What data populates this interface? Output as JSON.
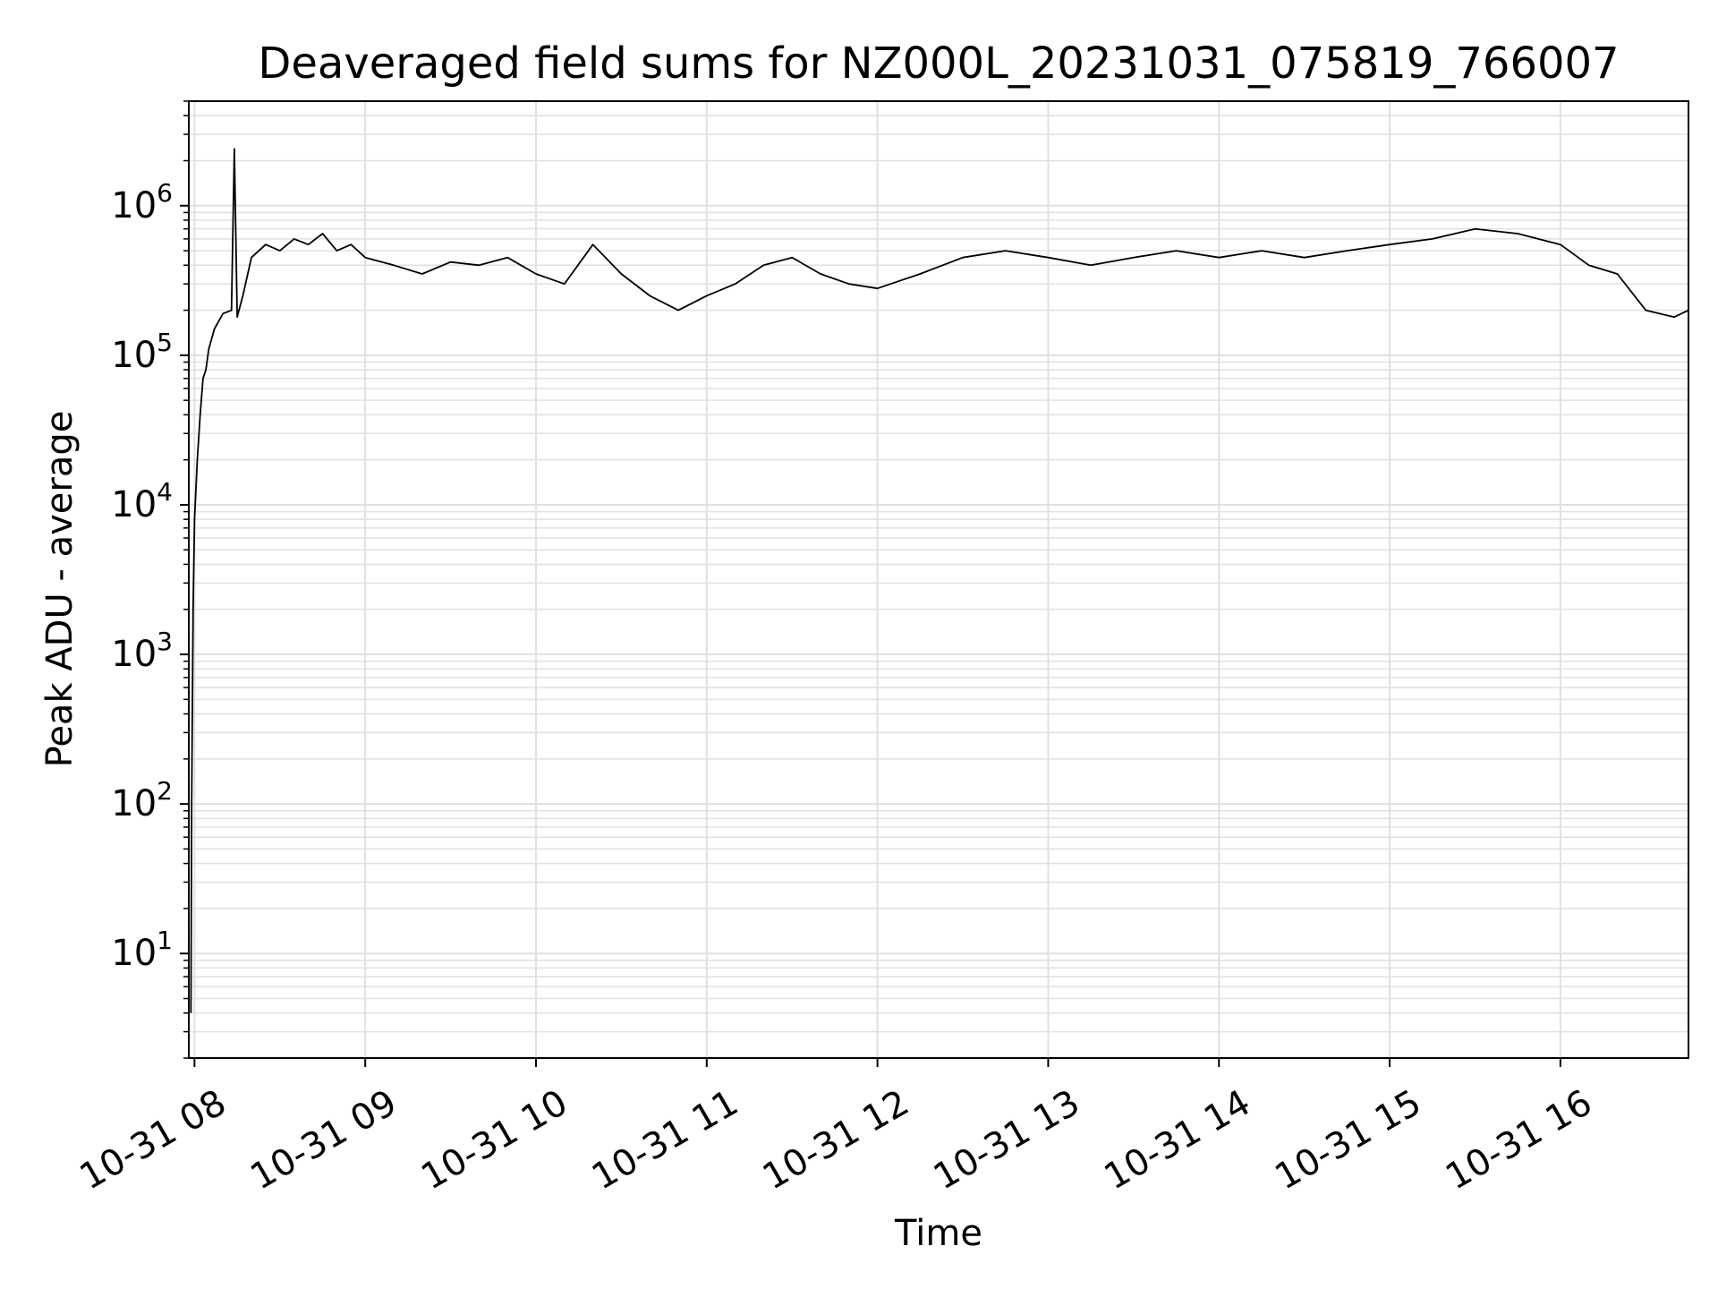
{
  "chart_data": {
    "type": "line",
    "title": "Deaveraged field sums for NZ000L_20231031_075819_766007",
    "xlabel": "Time",
    "ylabel": "Peak ADU - average",
    "yscale": "log",
    "ylim": [
      2,
      5000000
    ],
    "xlim": [
      "2023-10-31T07:58:00",
      "2023-10-31T16:45:00"
    ],
    "grid": true,
    "legend": "none",
    "line_color": "#000000",
    "grid_color": "#e0e0e0",
    "x_tick_labels": [
      "10-31 08",
      "10-31 09",
      "10-31 10",
      "10-31 11",
      "10-31 12",
      "10-31 13",
      "10-31 14",
      "10-31 15",
      "10-31 16"
    ],
    "x_ticks": [
      "2023-10-31T08:00:00",
      "2023-10-31T09:00:00",
      "2023-10-31T10:00:00",
      "2023-10-31T11:00:00",
      "2023-10-31T12:00:00",
      "2023-10-31T13:00:00",
      "2023-10-31T14:00:00",
      "2023-10-31T15:00:00",
      "2023-10-31T16:00:00"
    ],
    "y_tick_values": [
      10,
      100,
      1000,
      10000,
      100000,
      1000000
    ],
    "y_tick_labels": [
      {
        "base": "10",
        "exp": "1"
      },
      {
        "base": "10",
        "exp": "2"
      },
      {
        "base": "10",
        "exp": "3"
      },
      {
        "base": "10",
        "exp": "4"
      },
      {
        "base": "10",
        "exp": "5"
      },
      {
        "base": "10",
        "exp": "6"
      }
    ],
    "series": [
      {
        "x": [
          "2023-10-31T07:58:45",
          "2023-10-31T07:59:00",
          "2023-10-31T07:59:30",
          "2023-10-31T08:00:00",
          "2023-10-31T08:01:00",
          "2023-10-31T08:02:00",
          "2023-10-31T08:03:00",
          "2023-10-31T08:04:00",
          "2023-10-31T08:05:00",
          "2023-10-31T08:07:00",
          "2023-10-31T08:10:00",
          "2023-10-31T08:13:00",
          "2023-10-31T08:14:00",
          "2023-10-31T08:15:00",
          "2023-10-31T08:17:00",
          "2023-10-31T08:20:00",
          "2023-10-31T08:25:00",
          "2023-10-31T08:30:00",
          "2023-10-31T08:35:00",
          "2023-10-31T08:40:00",
          "2023-10-31T08:45:00",
          "2023-10-31T08:50:00",
          "2023-10-31T08:55:00",
          "2023-10-31T09:00:00",
          "2023-10-31T09:10:00",
          "2023-10-31T09:20:00",
          "2023-10-31T09:30:00",
          "2023-10-31T09:40:00",
          "2023-10-31T09:50:00",
          "2023-10-31T10:00:00",
          "2023-10-31T10:10:00",
          "2023-10-31T10:20:00",
          "2023-10-31T10:30:00",
          "2023-10-31T10:40:00",
          "2023-10-31T10:50:00",
          "2023-10-31T11:00:00",
          "2023-10-31T11:10:00",
          "2023-10-31T11:20:00",
          "2023-10-31T11:30:00",
          "2023-10-31T11:40:00",
          "2023-10-31T11:50:00",
          "2023-10-31T12:00:00",
          "2023-10-31T12:15:00",
          "2023-10-31T12:30:00",
          "2023-10-31T12:45:00",
          "2023-10-31T13:00:00",
          "2023-10-31T13:15:00",
          "2023-10-31T13:30:00",
          "2023-10-31T13:45:00",
          "2023-10-31T14:00:00",
          "2023-10-31T14:15:00",
          "2023-10-31T14:30:00",
          "2023-10-31T14:45:00",
          "2023-10-31T15:00:00",
          "2023-10-31T15:15:00",
          "2023-10-31T15:30:00",
          "2023-10-31T15:45:00",
          "2023-10-31T16:00:00",
          "2023-10-31T16:10:00",
          "2023-10-31T16:20:00",
          "2023-10-31T16:30:00",
          "2023-10-31T16:40:00",
          "2023-10-31T16:45:00"
        ],
        "y": [
          4,
          100,
          2000,
          8000,
          20000,
          40000,
          70000,
          80000,
          110000,
          150000,
          190000,
          200000,
          2400000,
          180000,
          250000,
          450000,
          550000,
          500000,
          600000,
          550000,
          650000,
          500000,
          550000,
          450000,
          400000,
          350000,
          420000,
          400000,
          450000,
          350000,
          300000,
          550000,
          350000,
          250000,
          200000,
          250000,
          300000,
          400000,
          450000,
          350000,
          300000,
          280000,
          350000,
          450000,
          500000,
          450000,
          400000,
          450000,
          500000,
          450000,
          500000,
          450000,
          500000,
          550000,
          600000,
          700000,
          650000,
          550000,
          400000,
          350000,
          200000,
          180000,
          200000
        ]
      }
    ]
  }
}
